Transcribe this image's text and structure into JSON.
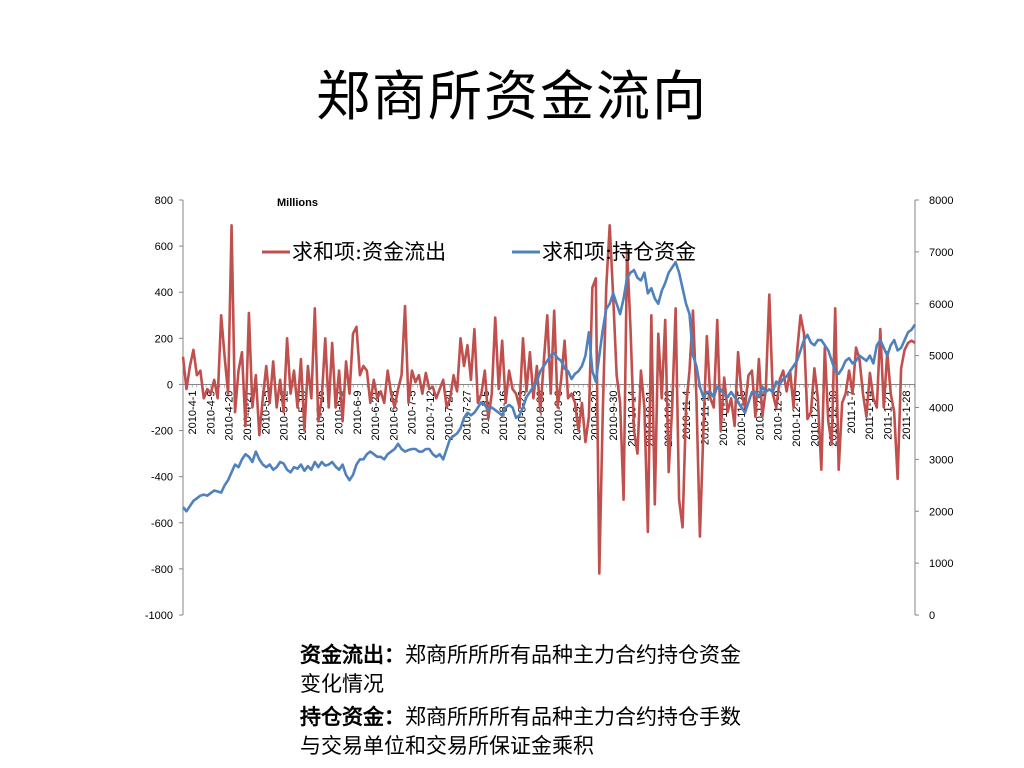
{
  "page": {
    "title": "郑商所资金流向"
  },
  "notes": [
    {
      "term": "资金流出：",
      "text": "郑商所所所有品种主力合约持仓资金变化情况"
    },
    {
      "term": "持仓资金：",
      "text": "郑商所所所有品种主力合约持仓手数与交易单位和交易所保证金乘积"
    }
  ],
  "chart_data": {
    "type": "line",
    "unit_label": "Millions",
    "left_axis": {
      "min": -1000,
      "max": 800,
      "step": 200,
      "ticks": [
        "800",
        "600",
        "400",
        "200",
        "0",
        "-200",
        "-400",
        "-600",
        "-800",
        "-1000"
      ]
    },
    "right_axis": {
      "min": 0,
      "max": 8000,
      "step": 1000,
      "ticks": [
        "8000",
        "7000",
        "6000",
        "5000",
        "4000",
        "3000",
        "2000",
        "1000",
        "0"
      ]
    },
    "x_tick_labels": [
      "2010-4-1",
      "2010-4-9",
      "2010-4-20",
      "2010-4-27",
      "2010-5-5",
      "2010-5-12",
      "2010-5-19",
      "2010-5-26",
      "2010-6-2",
      "2010-6-9",
      "2010-6-21",
      "2010-6-28",
      "2010-7-5",
      "2010-7-12",
      "2010-7-20",
      "2010-7-27",
      "2010-8-5",
      "2010-8-16",
      "2010-8-23",
      "2010-8-30",
      "2010-9-6",
      "2010-9-13",
      "2010-9-20",
      "2010-9-30",
      "2010-10-14",
      "2010-10-21",
      "2010-10-28",
      "2010-11-4",
      "2010-11-11",
      "2010-11-18",
      "2010-11-25",
      "2010-12-2",
      "2010-12-9",
      "2010-12-16",
      "2010-12-23",
      "2010-12-30",
      "2011-1-7",
      "2011-1-14",
      "2011-1-21",
      "2011-1-28"
    ],
    "legend_position": "top-center",
    "series": [
      {
        "name": "求和项:资金流出",
        "axis": "left",
        "color": "#C0504D",
        "values": [
          120,
          -20,
          80,
          150,
          40,
          60,
          -60,
          -20,
          -40,
          20,
          -60,
          300,
          120,
          -40,
          690,
          -120,
          60,
          140,
          -180,
          310,
          -100,
          40,
          -220,
          -60,
          80,
          -80,
          100,
          -100,
          20,
          -120,
          200,
          -40,
          60,
          -100,
          110,
          -200,
          80,
          -60,
          330,
          -160,
          -60,
          200,
          -100,
          180,
          -100,
          60,
          -160,
          100,
          -40,
          220,
          250,
          40,
          80,
          60,
          -80,
          20,
          -60,
          -30,
          -80,
          60,
          -40,
          -100,
          -20,
          40,
          340,
          -80,
          60,
          10,
          40,
          -40,
          50,
          -20,
          -10,
          -60,
          -20,
          20,
          -100,
          -60,
          40,
          -30,
          200,
          80,
          170,
          20,
          240,
          -80,
          -40,
          60,
          -150,
          -40,
          290,
          -20,
          190,
          -80,
          60,
          -20,
          -40,
          -100,
          200,
          -30,
          140,
          -60,
          80,
          -120,
          100,
          300,
          -40,
          320,
          -100,
          20,
          190,
          -60,
          -40,
          -80,
          -200,
          -80,
          -250,
          -140,
          420,
          460,
          -820,
          -120,
          420,
          690,
          380,
          40,
          -80,
          -500,
          580,
          240,
          -200,
          -300,
          60,
          -100,
          -640,
          300,
          -520,
          220,
          -60,
          280,
          -380,
          -100,
          330,
          -500,
          -620,
          -100,
          60,
          320,
          -60,
          -660,
          -200,
          210,
          -60,
          -100,
          280,
          -200,
          30,
          -120,
          -60,
          -180,
          140,
          -40,
          -100,
          40,
          60,
          -140,
          110,
          -140,
          -20,
          390,
          -40,
          -100,
          20,
          60,
          -30,
          60,
          -100,
          140,
          300,
          220,
          -150,
          -120,
          70,
          -60,
          -370,
          160,
          -160,
          -260,
          330,
          -370,
          -80,
          -40,
          60,
          -40,
          160,
          110,
          -40,
          -140,
          50,
          -60,
          -100,
          240,
          -100,
          140,
          -40,
          -120,
          -410,
          70,
          150,
          180,
          190,
          180
        ]
      },
      {
        "name": "求和项:持仓资金",
        "axis": "right",
        "color": "#4F81BD",
        "values": [
          2080,
          2000,
          2100,
          2200,
          2250,
          2300,
          2320,
          2300,
          2350,
          2400,
          2380,
          2360,
          2500,
          2600,
          2750,
          2900,
          2850,
          3000,
          3100,
          3050,
          2950,
          3150,
          3000,
          2900,
          2850,
          2900,
          2800,
          2850,
          2950,
          2920,
          2800,
          2750,
          2850,
          2820,
          2900,
          2780,
          2870,
          2800,
          2950,
          2850,
          2950,
          2880,
          2900,
          2950,
          2860,
          2800,
          2900,
          2700,
          2600,
          2700,
          2900,
          3000,
          3000,
          3100,
          3150,
          3100,
          3050,
          3050,
          3000,
          3100,
          3150,
          3200,
          3300,
          3200,
          3150,
          3180,
          3200,
          3200,
          3150,
          3150,
          3200,
          3200,
          3100,
          3050,
          3100,
          3000,
          3200,
          3400,
          3450,
          3500,
          3600,
          3800,
          3900,
          3850,
          3900,
          4000,
          4100,
          4050,
          3950,
          4000,
          3950,
          3900,
          3850,
          4000,
          4050,
          4000,
          3800,
          3850,
          4000,
          4200,
          4300,
          4400,
          4500,
          4700,
          4800,
          4900,
          5000,
          5050,
          4950,
          4900,
          4750,
          4700,
          4550,
          4650,
          4700,
          4800,
          5000,
          5450,
          4700,
          4500,
          5000,
          5500,
          5900,
          6000,
          6200,
          6000,
          5800,
          6100,
          6500,
          6600,
          6650,
          6500,
          6450,
          6600,
          6200,
          6300,
          6100,
          6000,
          6250,
          6400,
          6600,
          6700,
          6800,
          6600,
          6300,
          6000,
          5800,
          5000,
          4800,
          4400,
          4200,
          4300,
          4300,
          4200,
          4400,
          4350,
          4250,
          4200,
          4300,
          4200,
          4100,
          4000,
          3900,
          4100,
          4300,
          4300,
          4200,
          4400,
          4300,
          4350,
          4300,
          4500,
          4450,
          4550,
          4600,
          4700,
          4800,
          4900,
          5100,
          5300,
          5400,
          5250,
          5200,
          5300,
          5300,
          5200,
          5100,
          4900,
          4700,
          4650,
          4750,
          4900,
          4950,
          4850,
          4900,
          5000,
          4950,
          4900,
          5000,
          4850,
          5200,
          5300,
          5150,
          5000,
          5200,
          5300,
          5100,
          5150,
          5300,
          5450,
          5500,
          5600
        ]
      }
    ]
  }
}
